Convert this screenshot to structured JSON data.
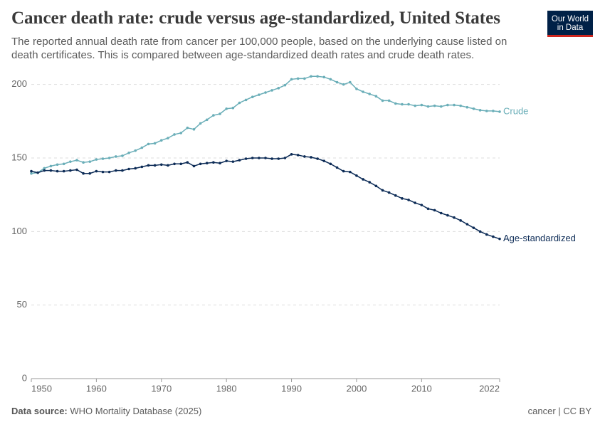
{
  "chart_data": {
    "type": "line",
    "title": "Cancer death rate: crude versus age-standardized, United States",
    "subtitle": "The reported annual death rate from cancer per 100,000 people, based on the underlying cause listed on death certificates. This is compared between age-standardized death rates and crude death rates.",
    "logo": [
      "Our World",
      "in Data"
    ],
    "source_label": "Data source:",
    "source": "WHO Mortality Database (2025)",
    "license": "cancer | CC BY",
    "x": [
      1950,
      1951,
      1952,
      1953,
      1954,
      1955,
      1956,
      1957,
      1958,
      1959,
      1960,
      1961,
      1962,
      1963,
      1964,
      1965,
      1966,
      1967,
      1968,
      1969,
      1970,
      1971,
      1972,
      1973,
      1974,
      1975,
      1976,
      1977,
      1978,
      1979,
      1980,
      1981,
      1982,
      1983,
      1984,
      1985,
      1986,
      1987,
      1988,
      1989,
      1990,
      1991,
      1992,
      1993,
      1994,
      1995,
      1996,
      1997,
      1998,
      1999,
      2000,
      2001,
      2002,
      2003,
      2004,
      2005,
      2006,
      2007,
      2008,
      2009,
      2010,
      2011,
      2012,
      2013,
      2014,
      2015,
      2016,
      2017,
      2018,
      2019,
      2020,
      2021,
      2022
    ],
    "series": [
      {
        "name": "Crude",
        "color": "#6aaeb8",
        "values": [
          139.5,
          140,
          143,
          144.5,
          145.5,
          146,
          147.5,
          148.5,
          147,
          147.5,
          149,
          149.5,
          150,
          151,
          151.5,
          153.5,
          155,
          157,
          159.5,
          160,
          162,
          163.5,
          166,
          167,
          170.5,
          169.5,
          173.5,
          176,
          179,
          180,
          183.5,
          184,
          187.5,
          189.5,
          191.5,
          193,
          194.5,
          196,
          197.5,
          199.5,
          203.5,
          204,
          204,
          205.5,
          205.5,
          205,
          203.5,
          201.5,
          200,
          201.5,
          197,
          195,
          193.5,
          192,
          189,
          189,
          187,
          186.5,
          186.5,
          185.5,
          186,
          185,
          185.5,
          185,
          186,
          186,
          185.5,
          184.5,
          183.5,
          182.5,
          182,
          182,
          181.5
        ]
      },
      {
        "name": "Age-standardized",
        "color": "#0c2b56",
        "values": [
          141,
          140,
          141.5,
          141.5,
          141,
          141,
          141.5,
          142,
          139.5,
          139.5,
          141,
          140.5,
          140.5,
          141.5,
          141.5,
          142.5,
          143,
          144,
          145,
          145,
          145.5,
          145,
          146,
          146,
          147,
          144.5,
          146,
          146.5,
          147,
          146.5,
          148,
          147.5,
          148.5,
          149.5,
          150,
          150,
          150,
          149.5,
          149.5,
          150,
          152.5,
          152,
          151,
          150.5,
          149.5,
          148,
          146,
          143.5,
          141,
          140.5,
          138,
          135.5,
          133.5,
          131,
          128,
          126.5,
          124.5,
          122.5,
          121.5,
          119.5,
          118,
          115.5,
          114.5,
          112.5,
          111,
          109.5,
          107.5,
          105,
          102.5,
          100,
          98,
          96.5,
          95
        ]
      }
    ],
    "xlim": [
      1950,
      2022
    ],
    "xticks": [
      1950,
      1960,
      1970,
      1980,
      1990,
      2000,
      2010,
      2022
    ],
    "ylim": [
      0,
      210
    ],
    "yticks": [
      0,
      50,
      100,
      150,
      200
    ],
    "grid": true
  }
}
